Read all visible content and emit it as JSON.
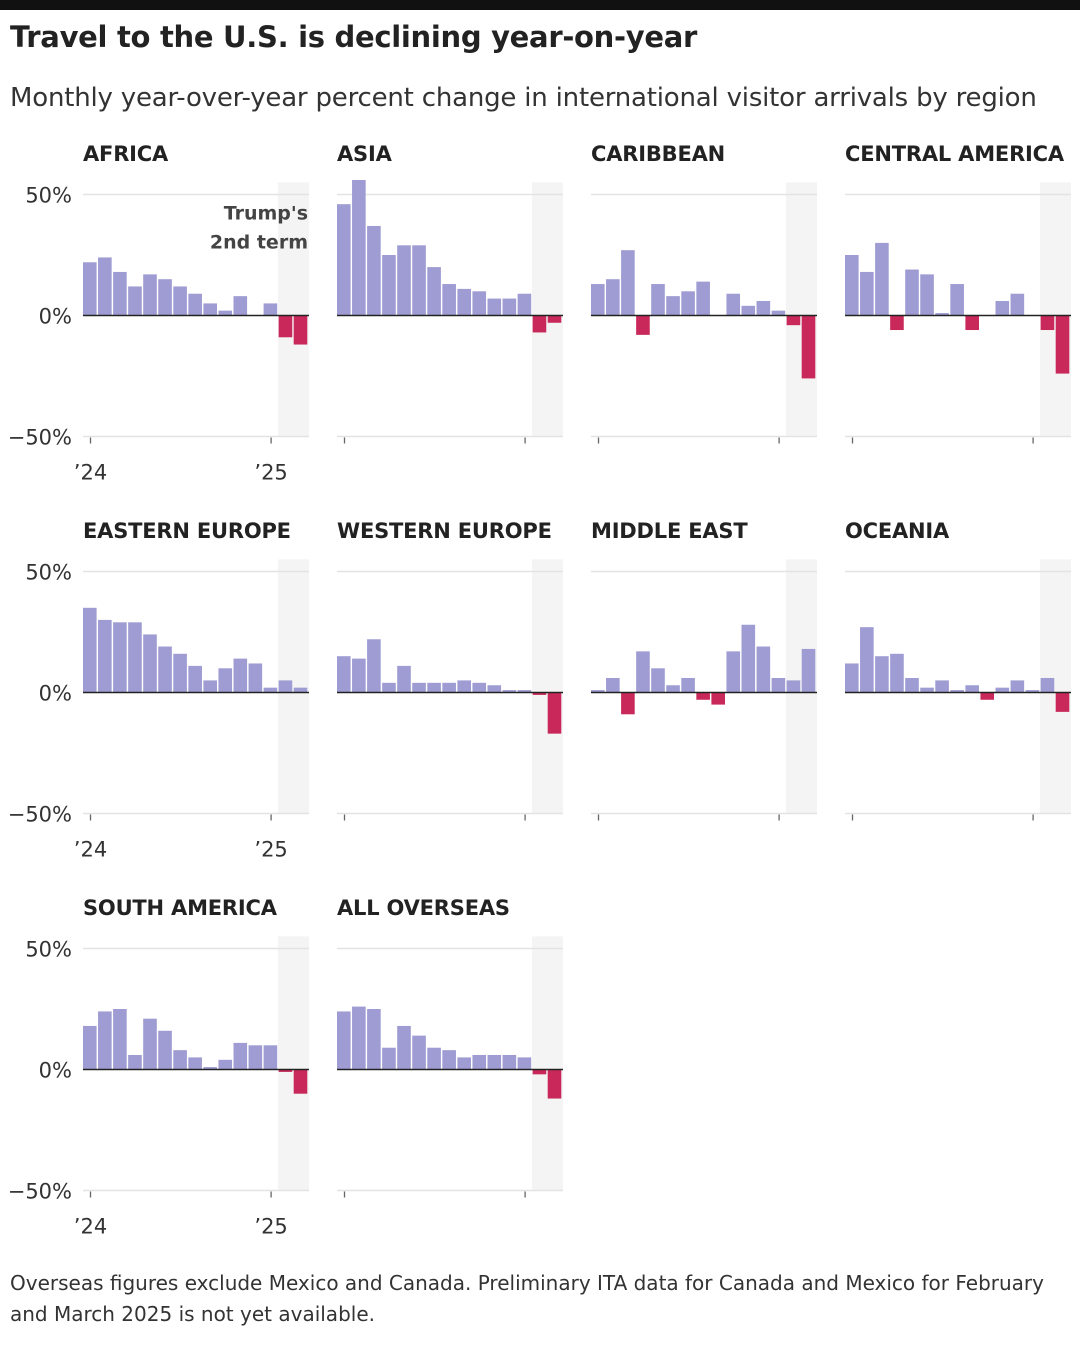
{
  "header": {
    "title": "Travel to the U.S. is declining year-on-year",
    "subtitle": "Monthly year-over-year percent change in international visitor arrivals by region"
  },
  "footnote": "Overseas figures exclude Mexico and Canada. Preliminary ITA data for Canada and Mexico for February and March 2025 is not yet available.",
  "colors": {
    "positive": "#9e9cd2",
    "negative": "#c8285a",
    "shade": "#f4f4f4",
    "gridline": "#e3e3e3",
    "zero_line": "#222222"
  },
  "chart_data": {
    "type": "bar",
    "layout": "small-multiples",
    "months": [
      "Jan 2024",
      "Feb 2024",
      "Mar 2024",
      "Apr 2024",
      "May 2024",
      "Jun 2024",
      "Jul 2024",
      "Aug 2024",
      "Sep 2024",
      "Oct 2024",
      "Nov 2024",
      "Dec 2024",
      "Jan 2025",
      "Feb 2025",
      "Mar 2025"
    ],
    "y_ticks": [
      "50%",
      "0%",
      "−50%"
    ],
    "y_tick_values": [
      50,
      0,
      -50
    ],
    "ylim": [
      -50,
      55
    ],
    "x_tick_labels": [
      "’24",
      "’25"
    ],
    "shaded_period": [
      "Feb 2025",
      "Mar 2025"
    ],
    "annotation": "Trump's 2nd term",
    "series": [
      {
        "name": "AFRICA",
        "values": [
          22,
          24,
          18,
          12,
          17,
          15,
          12,
          9,
          5,
          2,
          8,
          0,
          5,
          -9,
          -12
        ]
      },
      {
        "name": "ASIA",
        "values": [
          46,
          56,
          37,
          25,
          29,
          29,
          20,
          13,
          11,
          10,
          7,
          7,
          9,
          -7,
          -3
        ]
      },
      {
        "name": "CARIBBEAN",
        "values": [
          13,
          15,
          27,
          -8,
          13,
          8,
          10,
          14,
          0,
          9,
          4,
          6,
          2,
          -4,
          -26
        ]
      },
      {
        "name": "CENTRAL AMERICA",
        "values": [
          25,
          18,
          30,
          -6,
          19,
          17,
          1,
          13,
          -6,
          0,
          6,
          9,
          0,
          -6,
          -24
        ]
      },
      {
        "name": "EASTERN EUROPE",
        "values": [
          35,
          30,
          29,
          29,
          24,
          19,
          16,
          11,
          5,
          10,
          14,
          12,
          2,
          5,
          2
        ]
      },
      {
        "name": "WESTERN EUROPE",
        "values": [
          15,
          14,
          22,
          4,
          11,
          4,
          4,
          4,
          5,
          4,
          3,
          1,
          1,
          -1,
          -17
        ]
      },
      {
        "name": "MIDDLE EAST",
        "values": [
          1,
          6,
          -9,
          17,
          10,
          3,
          6,
          -3,
          -5,
          17,
          28,
          19,
          6,
          5,
          18
        ]
      },
      {
        "name": "OCEANIA",
        "values": [
          12,
          27,
          15,
          16,
          6,
          2,
          5,
          1,
          3,
          -3,
          2,
          5,
          1,
          6,
          -8
        ]
      },
      {
        "name": "SOUTH AMERICA",
        "values": [
          18,
          24,
          25,
          6,
          21,
          16,
          8,
          5,
          1,
          4,
          11,
          10,
          10,
          -1,
          -10
        ]
      },
      {
        "name": "ALL OVERSEAS",
        "values": [
          24,
          26,
          25,
          9,
          18,
          14,
          9,
          8,
          5,
          6,
          6,
          6,
          5,
          -2,
          -12
        ]
      }
    ]
  }
}
